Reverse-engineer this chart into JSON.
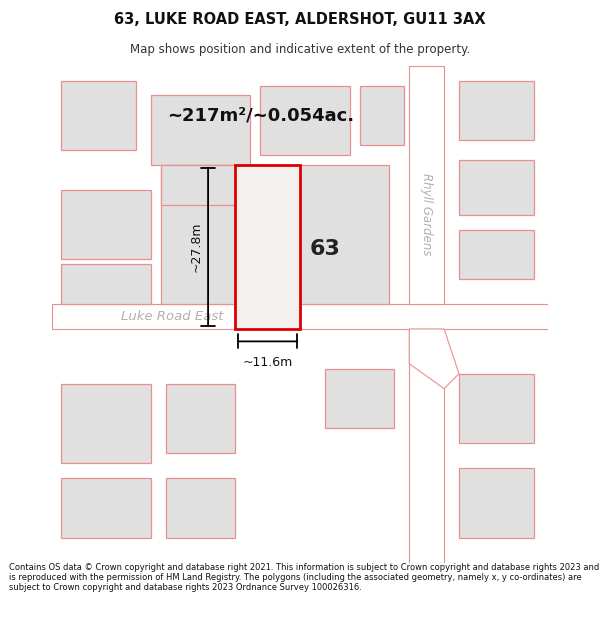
{
  "title_line1": "63, LUKE ROAD EAST, ALDERSHOT, GU11 3AX",
  "title_line2": "Map shows position and indicative extent of the property.",
  "area_text": "~217m²/~0.054ac.",
  "width_label": "~11.6m",
  "height_label": "~27.8m",
  "number_label": "63",
  "street_label_main": "Luke Road East",
  "street_label_right": "Rhyll Gardens",
  "footer_text": "Contains OS data © Crown copyright and database right 2021. This information is subject to Crown copyright and database rights 2023 and is reproduced with the permission of HM Land Registry. The polygons (including the associated geometry, namely x, y co-ordinates) are subject to Crown copyright and database rights 2023 Ordnance Survey 100026316.",
  "bg_color": "#ffffff",
  "map_bg": "#ffffff",
  "building_fill": "#e0e0e0",
  "building_stroke": "#e89090",
  "highlight_fill": "#f5f0f0",
  "highlight_stroke": "#dd0000",
  "street_label_color": "#b0b0b0"
}
